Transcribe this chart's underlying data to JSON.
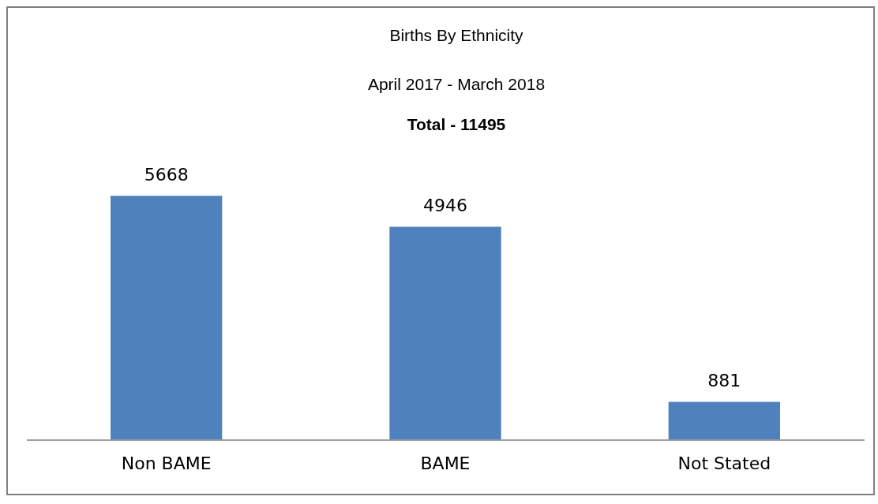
{
  "chart_data": {
    "type": "bar",
    "title": "Births By Ethnicity",
    "subtitle": "April 2017 - March 2018",
    "annotations": [
      "Total - 11495"
    ],
    "categories": [
      "Non BAME",
      "BAME",
      "Not Stated"
    ],
    "values": [
      5668,
      4946,
      881
    ],
    "color": "#4f81bd",
    "data_labels": true,
    "grid": false,
    "legend": false
  }
}
